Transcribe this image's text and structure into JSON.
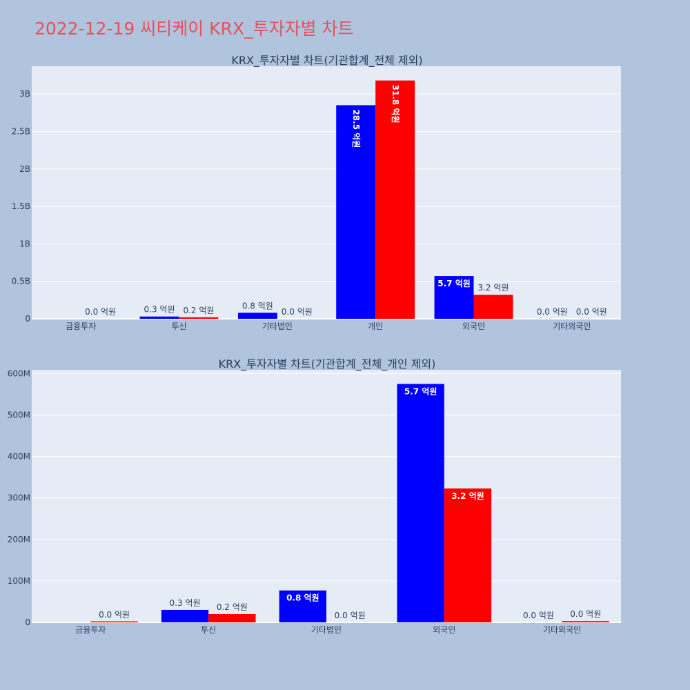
{
  "page_title": "2022-12-19 씨티케이 KRX_투자자별 차트",
  "colors": {
    "series_a": "#0000ff",
    "series_b": "#ff0000",
    "background": "#b0c4de",
    "plot": "#e5ecf6"
  },
  "chart_data": [
    {
      "type": "bar",
      "title": "KRX_투자자별 차트(기관합계_전체 제외)",
      "categories": [
        "금융투자",
        "투신",
        "기타법인",
        "개인",
        "외국인",
        "기타외국인"
      ],
      "series": [
        {
          "color": "#0000ff",
          "values": [
            0,
            30000000,
            80000000,
            2850000000,
            570000000,
            0
          ],
          "labels": [
            "",
            "0.3 억원",
            "0.8 억원",
            "28.5 억원",
            "5.7 억원",
            "0.0 억원"
          ]
        },
        {
          "color": "#ff0000",
          "values": [
            0,
            20000000,
            0,
            3180000000,
            320000000,
            0
          ],
          "labels": [
            "0.0 억원",
            "0.2 억원",
            "0.0 억원",
            "31.8 억원",
            "3.2 억원",
            "0.0 억원"
          ]
        }
      ],
      "yticks": [
        0,
        500000000,
        1000000000,
        1500000000,
        2000000000,
        2500000000,
        3000000000
      ],
      "ytick_labels": [
        "0",
        "0.5B",
        "1B",
        "1.5B",
        "2B",
        "2.5B",
        "3B"
      ],
      "ylim": [
        0,
        3370000000
      ],
      "grid": true,
      "legend": "none"
    },
    {
      "type": "bar",
      "title": "KRX_투자자별 차트(기관합계_전체_개인 제외)",
      "categories": [
        "금융투자",
        "투신",
        "기타법인",
        "외국인",
        "기타외국인"
      ],
      "series": [
        {
          "color": "#0000ff",
          "values": [
            0,
            30000000,
            77000000,
            575000000,
            0
          ],
          "labels": [
            "",
            "0.3 억원",
            "0.8 억원",
            "5.7 억원",
            "0.0 억원"
          ]
        },
        {
          "color": "#ff0000",
          "values": [
            1500000,
            20000000,
            0,
            323000000,
            3000000
          ],
          "labels": [
            "0.0 억원",
            "0.2 억원",
            "0.0 억원",
            "3.2 억원",
            "0.0 억원"
          ]
        }
      ],
      "yticks": [
        0,
        100000000,
        200000000,
        300000000,
        400000000,
        500000000,
        600000000
      ],
      "ytick_labels": [
        "0",
        "100M",
        "200M",
        "300M",
        "400M",
        "500M",
        "600M"
      ],
      "ylim": [
        0,
        609000000
      ],
      "grid": true,
      "legend": "none"
    }
  ]
}
